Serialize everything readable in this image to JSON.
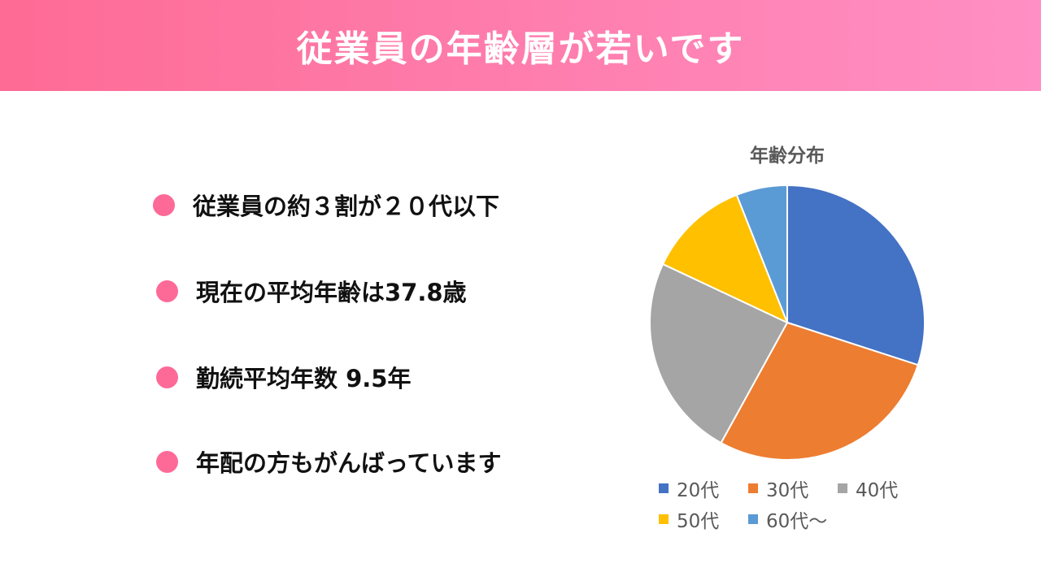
{
  "header": {
    "title": "従業員の年齢層が若いです"
  },
  "bullets": [
    {
      "text": "従業員の約３割が２０代以下"
    },
    {
      "text": "現在の平均年齢は37.8歳"
    },
    {
      "text": "勤続平均年数 9.5年"
    },
    {
      "text": "年配の方もがんばっています"
    }
  ],
  "colors": {
    "bullet_dot": "#fd6a98",
    "header_start": "#fe6b95",
    "header_end": "#ff8fc4"
  },
  "chart_data": {
    "type": "pie",
    "title": "年齢分布",
    "legend_position": "bottom",
    "categories": [
      "20代",
      "30代",
      "40代",
      "50代",
      "60代〜"
    ],
    "values": [
      30,
      28,
      24,
      12,
      6
    ],
    "colors": [
      "#4472c4",
      "#ed7d31",
      "#a5a5a5",
      "#ffc000",
      "#5b9bd5"
    ]
  }
}
